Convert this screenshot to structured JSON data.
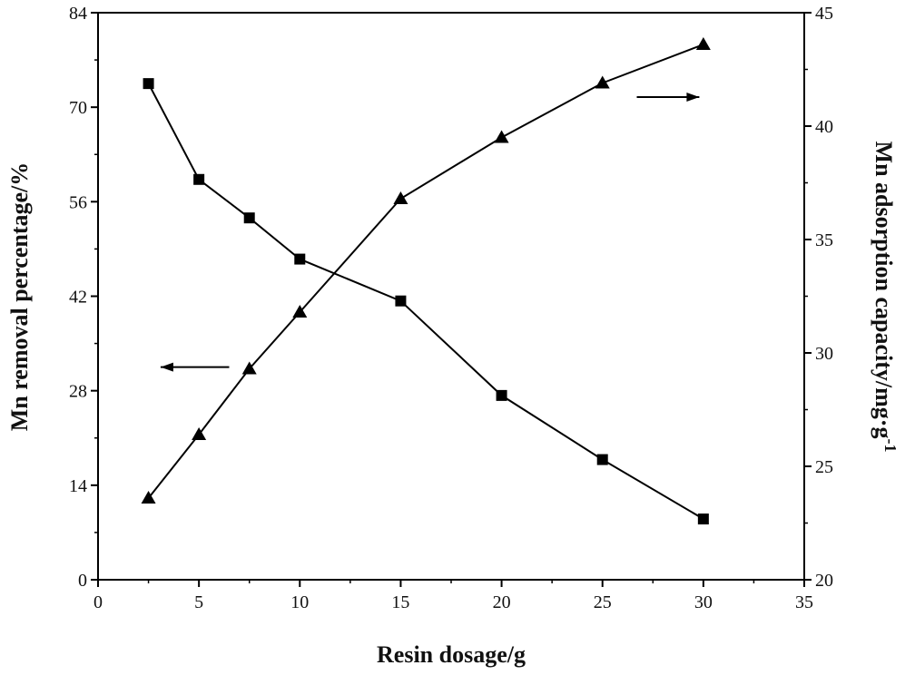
{
  "chart_data": {
    "type": "line",
    "xlabel": "Resin dosage/g",
    "ylabel_left": "Mn removal percentage/%",
    "ylabel_right_main": "Mn adsorption capacity/mg·g",
    "ylabel_right_sup": "-1",
    "xlim": [
      0,
      35
    ],
    "ylim_left": [
      0,
      84
    ],
    "ylim_right": [
      20,
      45
    ],
    "x_ticks": [
      0,
      5,
      10,
      15,
      20,
      25,
      30,
      35
    ],
    "y_left_ticks": [
      0,
      14,
      28,
      42,
      56,
      70,
      84
    ],
    "y_right_ticks": [
      20,
      25,
      30,
      35,
      40,
      45
    ],
    "grid": false,
    "series": [
      {
        "axis": "left",
        "marker": "square",
        "x": [
          2.5,
          5,
          7.5,
          10,
          15,
          20,
          25,
          30
        ],
        "y": [
          73.5,
          59.3,
          53.6,
          47.5,
          41.3,
          27.3,
          17.8,
          9.0
        ]
      },
      {
        "axis": "right",
        "marker": "triangle",
        "x": [
          2.5,
          5,
          7.5,
          10,
          15,
          20,
          25,
          30
        ],
        "y": [
          23.6,
          26.4,
          29.3,
          31.8,
          36.8,
          39.5,
          41.9,
          43.6
        ]
      }
    ],
    "annotations": [
      {
        "type": "arrow",
        "direction": "left",
        "x_from": 6.5,
        "x_to": 3.1,
        "y_left": 31.5
      },
      {
        "type": "arrow",
        "direction": "right",
        "x_from": 26.7,
        "x_to": 29.8,
        "y_left": 71.5
      }
    ]
  }
}
